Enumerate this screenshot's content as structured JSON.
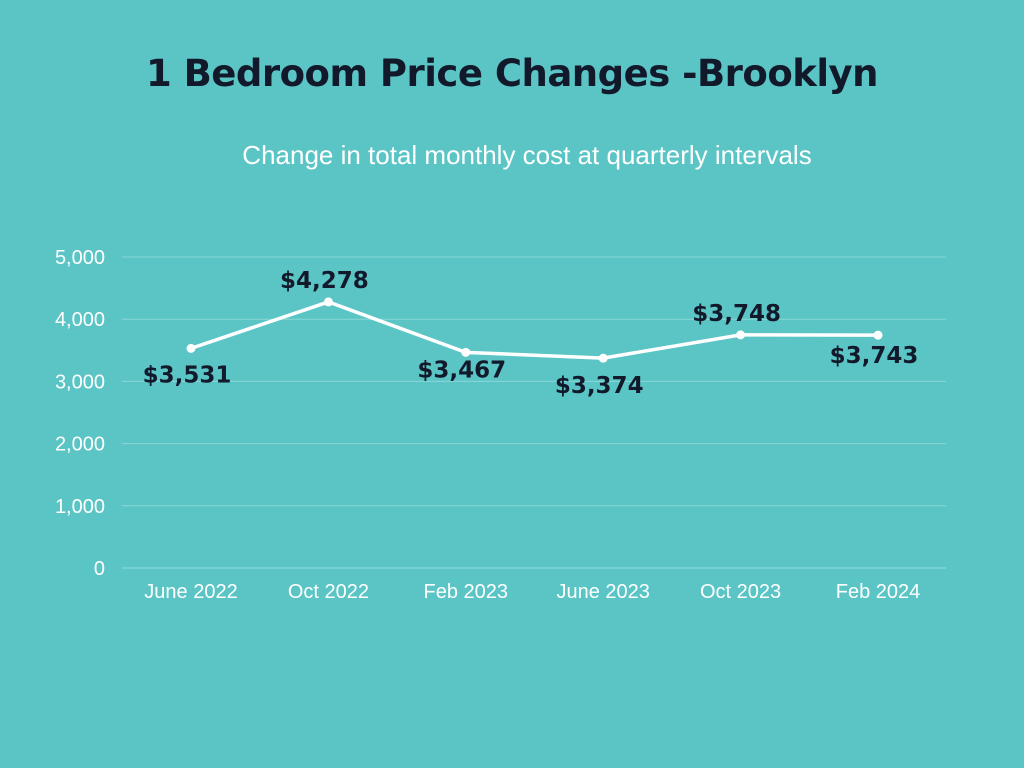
{
  "title": "1 Bedroom Price Changes -Brooklyn",
  "subtitle": "Change in total monthly cost at quarterly intervals",
  "colors": {
    "background": "#5bc5c6",
    "line": "#ffffff",
    "gridline": "#8ad6d6",
    "label": "#12192b"
  },
  "chart_data": {
    "type": "line",
    "categories": [
      "June 2022",
      "Oct 2022",
      "Feb 2023",
      "June 2023",
      "Oct 2023",
      "Feb 2024"
    ],
    "values": [
      3531,
      4278,
      3467,
      3374,
      3748,
      3743
    ],
    "data_labels": [
      "$3,531",
      "$4,278",
      "$3,467",
      "$3,374",
      "$3,748",
      "$3,743"
    ],
    "yticks": [
      0,
      1000,
      2000,
      3000,
      4000,
      5000
    ],
    "ytick_labels": [
      "0",
      "1,000",
      "2,000",
      "3,000",
      "4,000",
      "5,000"
    ],
    "ylim": [
      0,
      5000
    ],
    "grid": true,
    "legend": "none"
  }
}
